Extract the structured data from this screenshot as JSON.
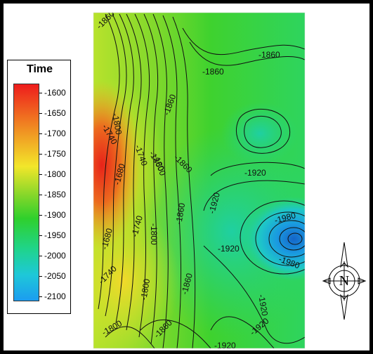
{
  "legend": {
    "title": "Time",
    "ticks": [
      "-1600",
      "-1650",
      "-1700",
      "-1750",
      "-1800",
      "-1850",
      "-1900",
      "-1950",
      "-2000",
      "-2050",
      "-2100"
    ]
  },
  "contour_labels": [
    {
      "text": "-1860",
      "id": "c1"
    },
    {
      "text": "-1860",
      "id": "c2"
    },
    {
      "text": "-1860",
      "id": "c3"
    },
    {
      "text": "-1860",
      "id": "c4"
    },
    {
      "text": "-1860",
      "id": "c5"
    },
    {
      "text": "-1800",
      "id": "c6"
    },
    {
      "text": "-1740",
      "id": "c7"
    },
    {
      "text": "-1680",
      "id": "c8"
    },
    {
      "text": "-1740",
      "id": "c9"
    },
    {
      "text": "-1800",
      "id": "c10"
    },
    {
      "text": "-1860",
      "id": "c11"
    },
    {
      "text": "-1740",
      "id": "c12"
    },
    {
      "text": "-1800",
      "id": "c13"
    },
    {
      "text": "-1860",
      "id": "c14"
    },
    {
      "text": "-1920",
      "id": "c15"
    },
    {
      "text": "-1920",
      "id": "c16"
    },
    {
      "text": "-1920",
      "id": "c17"
    },
    {
      "text": "-1920",
      "id": "c18"
    },
    {
      "text": "-1920",
      "id": "c19"
    },
    {
      "text": "-1980",
      "id": "c20"
    },
    {
      "text": "-1980",
      "id": "c21"
    },
    {
      "text": "-1680",
      "id": "c22"
    },
    {
      "text": "-1740",
      "id": "c23"
    },
    {
      "text": "-1800",
      "id": "c24"
    },
    {
      "text": "-1800",
      "id": "c25"
    },
    {
      "text": "-1860",
      "id": "c26"
    },
    {
      "text": "-1860",
      "id": "c27"
    },
    {
      "text": "-1920",
      "id": "c28"
    }
  ],
  "compass": {
    "letter": "N"
  },
  "colors": {
    "high": "#ee1c1c",
    "mid_high": "#f2e62a",
    "mid": "#2fd02c",
    "low": "#1c9cf0"
  }
}
